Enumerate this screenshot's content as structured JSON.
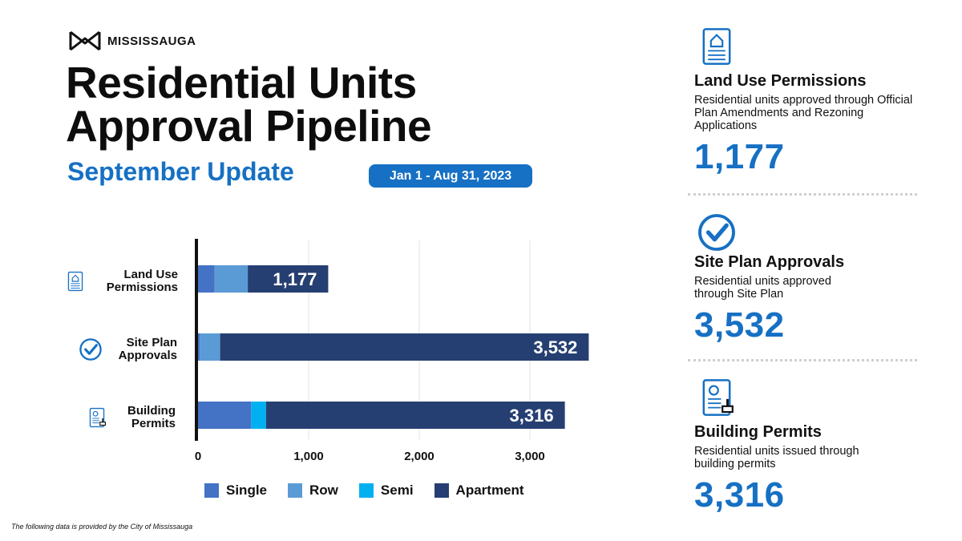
{
  "brand": {
    "name": "MISSISSAUGA"
  },
  "header": {
    "title_line1": "Residential Units",
    "title_line2": "Approval Pipeline",
    "subtitle": "September Update",
    "date_range": "Jan 1 - Aug 31, 2023"
  },
  "footnote": "The following data is provided by the City of Mississauga",
  "colors": {
    "single": "#4472c4",
    "row": "#5b9bd5",
    "semi": "#00b0f0",
    "apartment": "#263f72",
    "accent": "#1670c4"
  },
  "chart_data": {
    "type": "bar",
    "orientation": "horizontal",
    "stacked": true,
    "categories": [
      {
        "line1": "Land Use",
        "line2": "Permissions",
        "icon": "document-house-icon",
        "total": "1,177"
      },
      {
        "line1": "Site Plan",
        "line2": "Approvals",
        "icon": "checkmark-circle-icon",
        "total": "3,532"
      },
      {
        "line1": "Building",
        "line2": "Permits",
        "icon": "permit-stamp-icon",
        "total": "3,316"
      }
    ],
    "series": [
      {
        "name": "Single",
        "values": [
          150,
          15,
          480
        ]
      },
      {
        "name": "Row",
        "values": [
          300,
          185,
          0
        ]
      },
      {
        "name": "Semi",
        "values": [
          0,
          0,
          135
        ]
      },
      {
        "name": "Apartment",
        "values": [
          727,
          3332,
          2701
        ]
      }
    ],
    "xlim": [
      0,
      3500
    ],
    "ticks": [
      {
        "value": 0,
        "label": "0"
      },
      {
        "value": 1000,
        "label": "1,000"
      },
      {
        "value": 2000,
        "label": "2,000"
      },
      {
        "value": 3000,
        "label": "3,000"
      }
    ],
    "grid": true,
    "legend": "bottom"
  },
  "cards": [
    {
      "title": "Land Use Permissions",
      "desc": "Residential units approved through Official Plan Amendments and Rezoning Applications",
      "value": "1,177",
      "icon": "document-house-icon"
    },
    {
      "title": "Site Plan Approvals",
      "desc": "Residential units approved through Site Plan",
      "value": "3,532",
      "icon": "checkmark-circle-icon"
    },
    {
      "title": "Building Permits",
      "desc": "Residential units issued through building permits",
      "value": "3,316",
      "icon": "permit-stamp-icon"
    }
  ]
}
